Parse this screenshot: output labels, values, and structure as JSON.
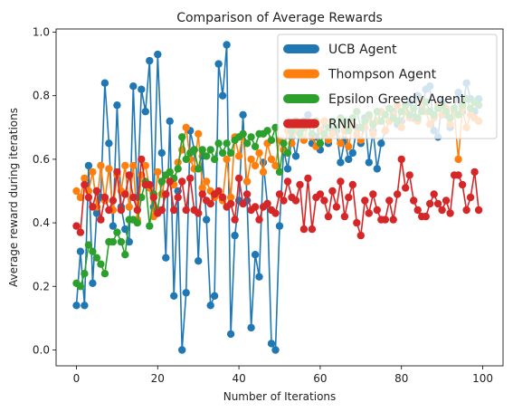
{
  "chart_data": {
    "type": "line",
    "title": "Comparison of Average Rewards",
    "xlabel": "Number of Iterations",
    "ylabel": "Average reward during iterations",
    "xlim": [
      -5,
      105
    ],
    "ylim": [
      -0.05,
      1.01
    ],
    "xticks": [
      0,
      20,
      40,
      60,
      80,
      100
    ],
    "yticks": [
      0.0,
      0.2,
      0.4,
      0.6,
      0.8,
      1.0
    ],
    "grid": false,
    "legend_position": "top-right",
    "series": [
      {
        "name": "UCB Agent",
        "color": "#1f77b4",
        "y": [
          0.14,
          0.31,
          0.14,
          0.58,
          0.21,
          0.43,
          0.48,
          0.84,
          0.65,
          0.39,
          0.77,
          0.45,
          0.38,
          0.34,
          0.83,
          0.48,
          0.82,
          0.75,
          0.91,
          0.45,
          0.93,
          0.62,
          0.29,
          0.72,
          0.17,
          0.5,
          0.0,
          0.18,
          0.69,
          0.63,
          0.28,
          0.61,
          0.41,
          0.14,
          0.17,
          0.9,
          0.8,
          0.96,
          0.05,
          0.36,
          0.47,
          0.74,
          0.47,
          0.07,
          0.3,
          0.23,
          0.59,
          0.46,
          0.02,
          0.0,
          0.39,
          0.63,
          0.57,
          0.67,
          0.61,
          0.69,
          0.72,
          0.74,
          0.65,
          0.67,
          0.63,
          0.72,
          0.65,
          0.69,
          0.69,
          0.59,
          0.66,
          0.6,
          0.62,
          0.7,
          0.65,
          0.73,
          0.59,
          0.69,
          0.57,
          0.65,
          0.69,
          0.72,
          0.75,
          0.71,
          0.72,
          0.75,
          0.78,
          0.73,
          0.8,
          0.76,
          0.82,
          0.83,
          0.69,
          0.67,
          0.78,
          0.74,
          0.7,
          0.76,
          0.81,
          0.75,
          0.84,
          0.79,
          0.75,
          0.79
        ]
      },
      {
        "name": "Thompson Agent",
        "color": "#ff7f0e",
        "y": [
          0.5,
          0.48,
          0.54,
          0.5,
          0.56,
          0.45,
          0.58,
          0.47,
          0.57,
          0.44,
          0.55,
          0.5,
          0.58,
          0.45,
          0.58,
          0.41,
          0.55,
          0.58,
          0.51,
          0.42,
          0.56,
          0.49,
          0.55,
          0.56,
          0.52,
          0.59,
          0.63,
          0.7,
          0.6,
          0.57,
          0.68,
          0.51,
          0.53,
          0.5,
          0.48,
          0.49,
          0.47,
          0.6,
          0.48,
          0.67,
          0.61,
          0.68,
          0.53,
          0.6,
          0.58,
          0.62,
          0.56,
          0.65,
          0.6,
          0.58,
          0.66,
          0.63,
          0.69,
          0.65,
          0.69,
          0.7,
          0.66,
          0.71,
          0.67,
          0.64,
          0.69,
          0.72,
          0.66,
          0.68,
          0.7,
          0.65,
          0.69,
          0.64,
          0.71,
          0.68,
          0.66,
          0.7,
          0.73,
          0.68,
          0.72,
          0.75,
          0.69,
          0.72,
          0.74,
          0.77,
          0.7,
          0.75,
          0.73,
          0.76,
          0.72,
          0.78,
          0.75,
          0.71,
          0.73,
          0.77,
          0.74,
          0.76,
          0.71,
          0.75,
          0.6,
          0.76,
          0.7,
          0.74,
          0.73,
          0.72
        ]
      },
      {
        "name": "Epsilon Greedy Agent",
        "color": "#2ca02c",
        "y": [
          0.21,
          0.2,
          0.24,
          0.33,
          0.31,
          0.29,
          0.27,
          0.24,
          0.34,
          0.34,
          0.37,
          0.34,
          0.3,
          0.41,
          0.41,
          0.4,
          0.48,
          0.53,
          0.39,
          0.49,
          0.44,
          0.53,
          0.55,
          0.56,
          0.54,
          0.57,
          0.67,
          0.6,
          0.62,
          0.63,
          0.57,
          0.63,
          0.61,
          0.63,
          0.6,
          0.65,
          0.62,
          0.65,
          0.62,
          0.66,
          0.67,
          0.68,
          0.65,
          0.67,
          0.64,
          0.68,
          0.68,
          0.69,
          0.66,
          0.7,
          0.56,
          0.65,
          0.62,
          0.69,
          0.72,
          0.68,
          0.7,
          0.71,
          0.68,
          0.72,
          0.65,
          0.68,
          0.7,
          0.72,
          0.7,
          0.73,
          0.72,
          0.69,
          0.73,
          0.75,
          0.7,
          0.72,
          0.74,
          0.71,
          0.75,
          0.72,
          0.74,
          0.76,
          0.73,
          0.72,
          0.75,
          0.77,
          0.74,
          0.76,
          0.73,
          0.75,
          0.78,
          0.75,
          0.74,
          0.76,
          0.77,
          0.75,
          0.73,
          0.76,
          0.74,
          0.77,
          0.79,
          0.76,
          0.78,
          0.77
        ]
      },
      {
        "name": "RNN",
        "color": "#d62728",
        "y": [
          0.39,
          0.37,
          0.52,
          0.48,
          0.45,
          0.5,
          0.41,
          0.48,
          0.44,
          0.47,
          0.56,
          0.44,
          0.49,
          0.55,
          0.48,
          0.44,
          0.6,
          0.52,
          0.52,
          0.48,
          0.43,
          0.44,
          0.49,
          0.53,
          0.44,
          0.48,
          0.53,
          0.44,
          0.54,
          0.44,
          0.43,
          0.49,
          0.47,
          0.46,
          0.49,
          0.5,
          0.48,
          0.45,
          0.46,
          0.41,
          0.54,
          0.46,
          0.49,
          0.44,
          0.45,
          0.41,
          0.45,
          0.46,
          0.44,
          0.43,
          0.49,
          0.47,
          0.53,
          0.48,
          0.47,
          0.52,
          0.38,
          0.54,
          0.38,
          0.48,
          0.49,
          0.47,
          0.42,
          0.5,
          0.45,
          0.53,
          0.42,
          0.48,
          0.52,
          0.4,
          0.36,
          0.47,
          0.43,
          0.49,
          0.44,
          0.41,
          0.41,
          0.47,
          0.41,
          0.49,
          0.6,
          0.51,
          0.55,
          0.47,
          0.44,
          0.42,
          0.42,
          0.46,
          0.49,
          0.46,
          0.44,
          0.47,
          0.43,
          0.55,
          0.55,
          0.52,
          0.44,
          0.48,
          0.56,
          0.44
        ]
      }
    ]
  }
}
